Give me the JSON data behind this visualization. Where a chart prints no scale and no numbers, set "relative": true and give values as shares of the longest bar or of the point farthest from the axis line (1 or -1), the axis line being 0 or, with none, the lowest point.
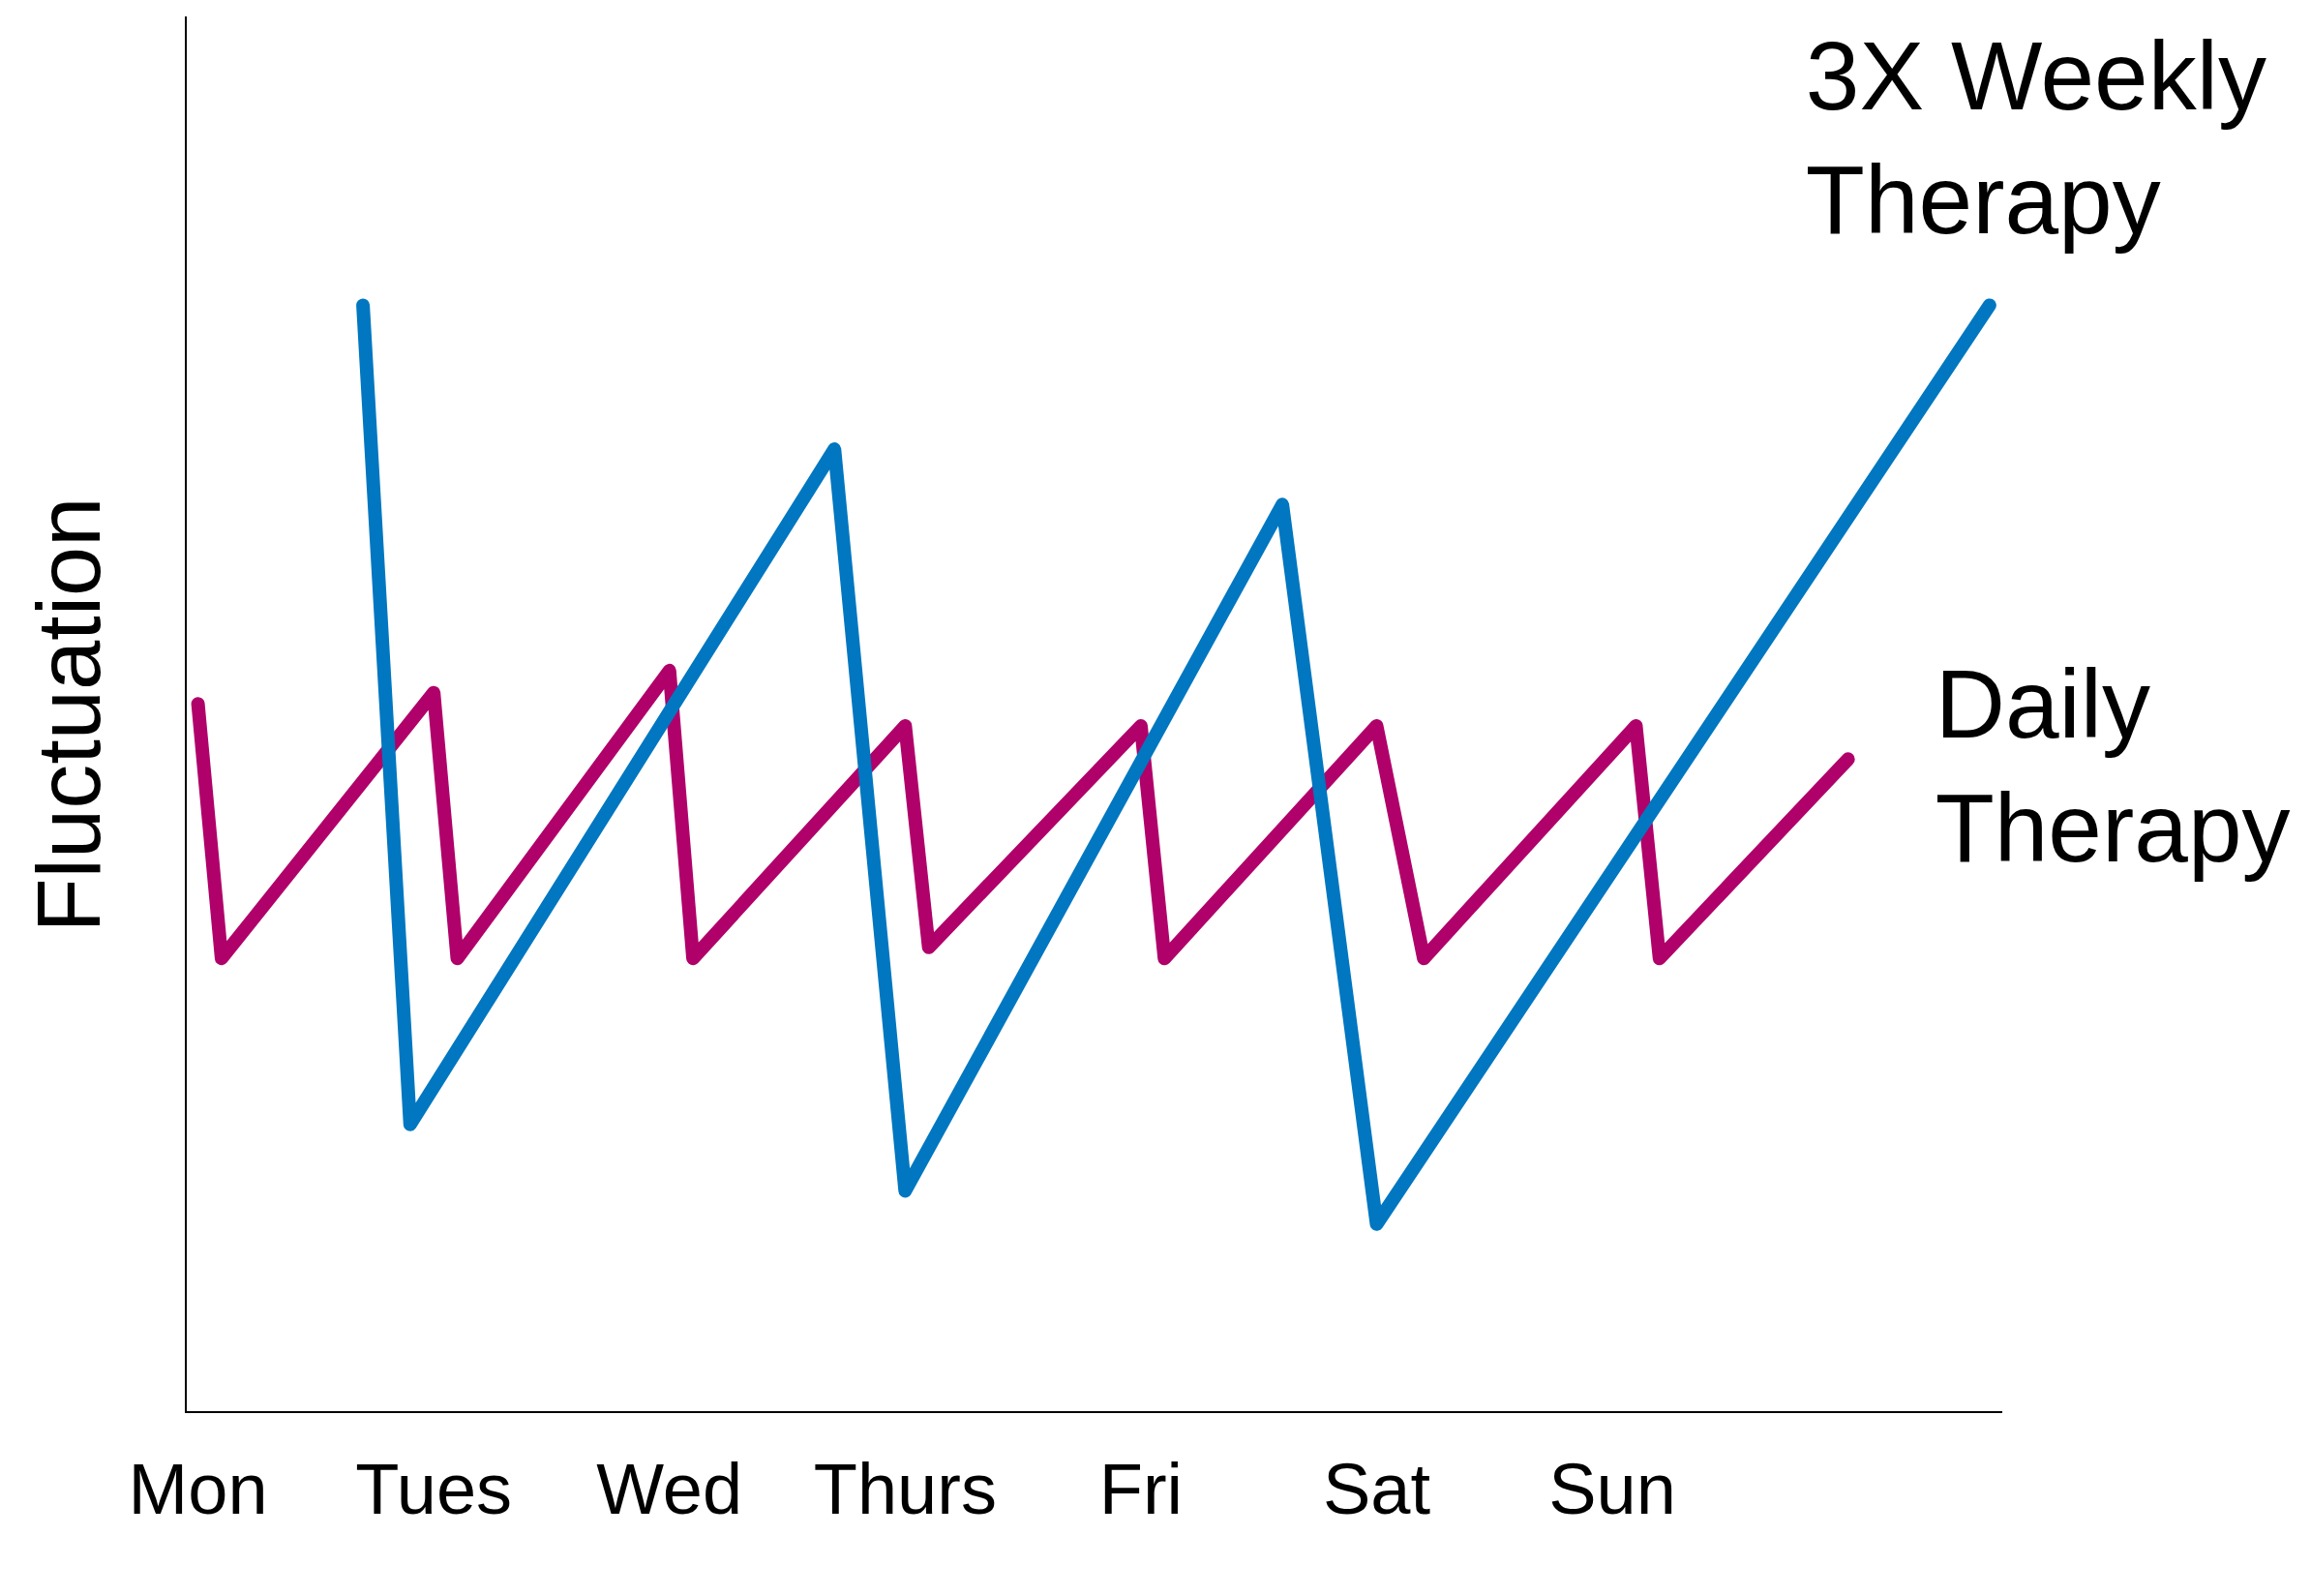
{
  "chart_data": {
    "type": "line",
    "relative": true,
    "ylabel": "Fluctuation",
    "categories": [
      "Mon",
      null,
      null,
      null,
      null,
      null,
      null,
      null,
      null,
      null,
      "Tues",
      null,
      null,
      null,
      null,
      null,
      null,
      null,
      null,
      null,
      "Wed",
      null,
      null,
      null,
      null,
      null,
      null,
      null,
      null,
      null,
      "Thurs",
      null,
      null,
      null,
      null,
      null,
      null,
      null,
      null,
      null,
      "Fri",
      null,
      null,
      null,
      null,
      null,
      null,
      null,
      null,
      null,
      "Sat",
      null,
      null,
      null,
      null,
      null,
      null,
      null,
      null,
      null,
      "Sun",
      null,
      null,
      null,
      null,
      null,
      null,
      null,
      null,
      null,
      null,
      null,
      null,
      null,
      null,
      null,
      null
    ],
    "grid": false,
    "legend": false,
    "marker": "none",
    "line_style": "solid",
    "series": [
      {
        "name": "3X Weekly Therapy",
        "color": "#0077c0",
        "values": [
          null,
          null,
          null,
          null,
          null,
          null,
          null,
          1.0,
          null,
          0.26,
          null,
          null,
          null,
          null,
          null,
          null,
          null,
          null,
          null,
          null,
          null,
          null,
          null,
          null,
          null,
          null,
          null,
          0.87,
          null,
          null,
          0.2,
          null,
          null,
          null,
          null,
          null,
          null,
          null,
          null,
          null,
          null,
          null,
          null,
          null,
          null,
          null,
          0.82,
          null,
          null,
          null,
          0.17,
          null,
          null,
          null,
          null,
          null,
          null,
          null,
          null,
          null,
          null,
          null,
          null,
          null,
          null,
          null,
          null,
          null,
          null,
          null,
          null,
          null,
          null,
          null,
          null,
          null,
          1.0
        ]
      },
      {
        "name": "Daily Therapy",
        "color": "#b0006a",
        "values": [
          0.64,
          0.41,
          null,
          null,
          null,
          null,
          null,
          null,
          null,
          null,
          0.65,
          0.41,
          null,
          null,
          null,
          null,
          null,
          null,
          null,
          null,
          0.67,
          0.41,
          null,
          null,
          null,
          null,
          null,
          null,
          null,
          null,
          0.62,
          0.42,
          null,
          null,
          null,
          null,
          null,
          null,
          null,
          null,
          0.62,
          0.41,
          null,
          null,
          null,
          null,
          null,
          null,
          null,
          null,
          0.62,
          null,
          0.41,
          null,
          null,
          null,
          null,
          null,
          null,
          null,
          null,
          0.62,
          0.41,
          null,
          null,
          null,
          null,
          null,
          null,
          null,
          0.59,
          null,
          null,
          null,
          null,
          null,
          null
        ]
      }
    ]
  }
}
